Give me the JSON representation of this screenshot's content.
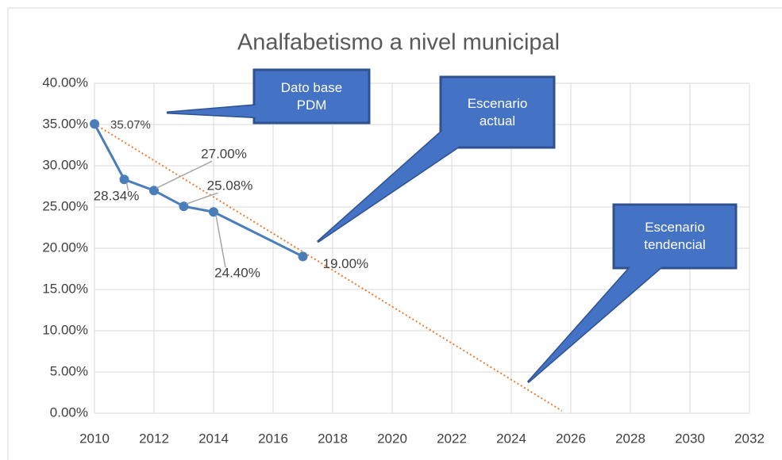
{
  "chart_data": {
    "type": "line",
    "title": "Analfabetismo a nivel municipal",
    "x": [
      2010,
      2011,
      2012,
      2013,
      2014,
      2017
    ],
    "series": [
      {
        "color": "#4a7ebb",
        "values": [
          35.07,
          28.34,
          27.0,
          25.08,
          24.4,
          19.0
        ],
        "value_labels": [
          "35.07%",
          "28.34%",
          "27.00%",
          "25.08%",
          "24.40%",
          "19.00%"
        ]
      }
    ],
    "trendline": {
      "color": "#ed7d31",
      "x": [
        2010,
        2025.7
      ],
      "values": [
        35.07,
        0.3
      ]
    },
    "xlim": [
      2010,
      2032
    ],
    "xticks": [
      2010,
      2012,
      2014,
      2016,
      2018,
      2020,
      2022,
      2024,
      2026,
      2028,
      2030,
      2032
    ],
    "ylim": [
      0,
      40
    ],
    "yticks": [
      {
        "value": 0,
        "label": "0.00%"
      },
      {
        "value": 5,
        "label": "5.00%"
      },
      {
        "value": 10,
        "label": "10.00%"
      },
      {
        "value": 15,
        "label": "15.00%"
      },
      {
        "value": 20,
        "label": "20.00%"
      },
      {
        "value": 25,
        "label": "25.00%"
      },
      {
        "value": 30,
        "label": "30.00%"
      },
      {
        "value": 35,
        "label": "35.00%"
      },
      {
        "value": 40,
        "label": "40.00%"
      }
    ],
    "grid": true,
    "annotations": [
      "Dato base PDM",
      "Escenario actual",
      "Escenario tendencial"
    ]
  }
}
